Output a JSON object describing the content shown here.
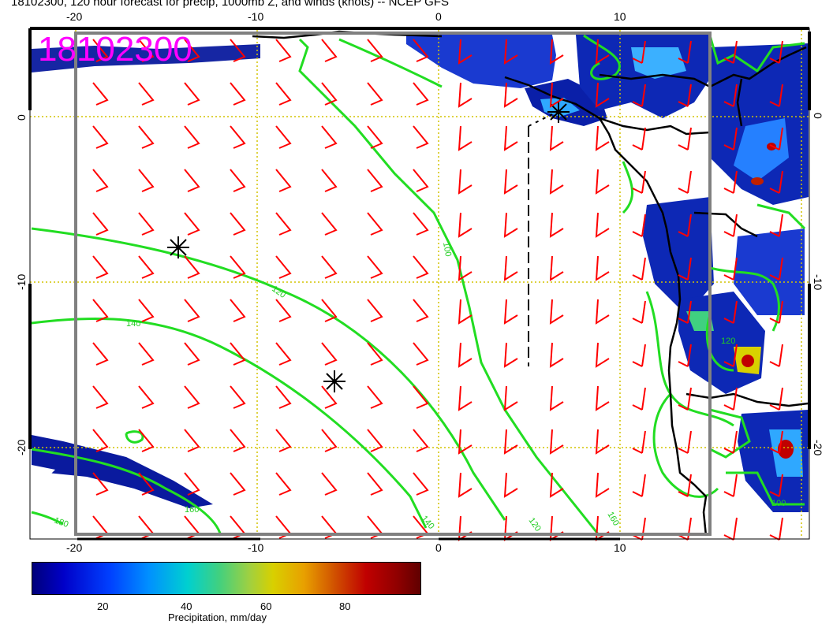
{
  "title": "18102300, 120 hour forecast for precip, 1000mb Z, and winds (knots) -- NCEP GFS",
  "stamp": "18102300",
  "axes": {
    "top_lon_ticks": [
      "-20",
      "-10",
      "0",
      "10"
    ],
    "bottom_lon_ticks": [
      "-20",
      "-10",
      "0",
      "10"
    ],
    "left_lat_ticks": [
      "0",
      "-10",
      "-20"
    ],
    "right_lat_ticks": [
      "0",
      "-10",
      "-20"
    ]
  },
  "contour_labels": [
    "120",
    "140",
    "160",
    "180",
    "100",
    "120",
    "140",
    "160",
    "120",
    "100"
  ],
  "colorbar": {
    "ticks": [
      "20",
      "40",
      "60",
      "80"
    ],
    "label": "Precipitation, mm/day"
  },
  "colors": {
    "contour": "#22dd22",
    "wind_barb": "#ff0000",
    "title_stamp": "#ff00ff",
    "grid": "#d4c400",
    "frame": "#808080"
  }
}
